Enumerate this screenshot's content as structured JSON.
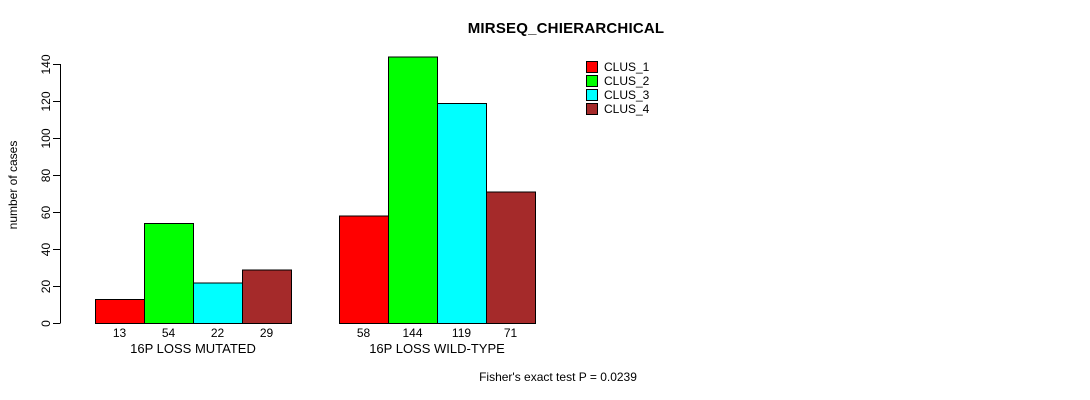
{
  "chart_data": {
    "type": "bar",
    "title": "MIRSEQ_CHIERARCHICAL",
    "ylabel": "number of cases",
    "xlabel": "",
    "categories": [
      "16P LOSS MUTATED",
      "16P LOSS WILD-TYPE"
    ],
    "series": [
      {
        "name": "CLUS_1",
        "color": "#FF0000",
        "values": [
          13,
          58
        ]
      },
      {
        "name": "CLUS_2",
        "color": "#00FF00",
        "values": [
          54,
          144
        ]
      },
      {
        "name": "CLUS_3",
        "color": "#00FFFF",
        "values": [
          22,
          119
        ]
      },
      {
        "name": "CLUS_4",
        "color": "#A52A2A",
        "values": [
          29,
          71
        ]
      }
    ],
    "yticks": [
      0,
      20,
      40,
      60,
      80,
      100,
      120,
      140
    ],
    "ylim": [
      0,
      144
    ],
    "bar_value_labels": [
      [
        13,
        54,
        22,
        29
      ],
      [
        58,
        144,
        119,
        71
      ]
    ],
    "grid": false,
    "legend_position": "top-right",
    "annotation": "Fisher's exact test P = 0.0239",
    "axis_color": "#000000",
    "bar_border_color": "#000000",
    "background_color": "#FFFFFF"
  }
}
